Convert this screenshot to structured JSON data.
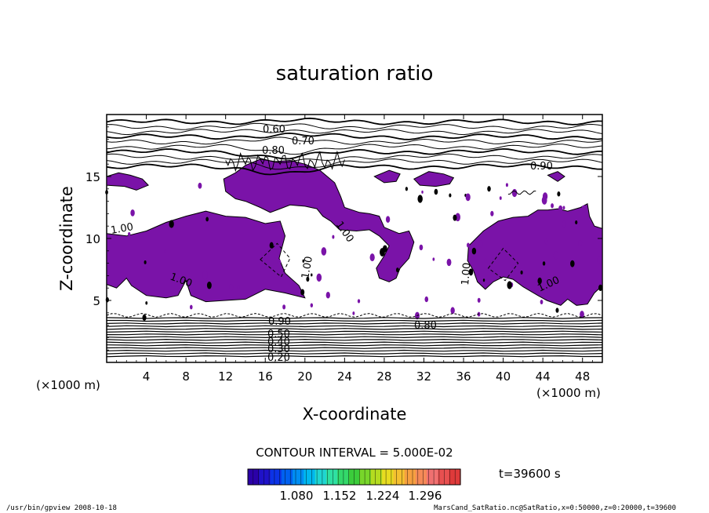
{
  "chart_data": {
    "type": "contour",
    "title": "saturation ratio",
    "xlabel": "X-coordinate",
    "ylabel": "Z-coordinate",
    "x_unit": "(×1000 m)",
    "y_unit": "(×1000 m)",
    "xlim": [
      0,
      50
    ],
    "ylim": [
      0,
      20
    ],
    "x_ticks": [
      4,
      8,
      12,
      16,
      20,
      24,
      28,
      32,
      36,
      40,
      44,
      48
    ],
    "y_ticks": [
      5,
      10,
      15
    ],
    "contour_interval_text": "CONTOUR INTERVAL = 5.000E-02",
    "shaded_region_color": "#7a13a8",
    "contour_labels": [
      "0.60",
      "0.70",
      "0.80",
      "0.90",
      "1.00",
      "1.00",
      "1.00",
      "1.00",
      "1.00",
      "1.00",
      "0.90",
      "0.80",
      "0.50",
      "0.40",
      "0.30",
      "0.20"
    ],
    "colorbar": {
      "tick_labels": [
        "1.080",
        "1.152",
        "1.224",
        "1.296"
      ],
      "colors": [
        "#2b00a8",
        "#1f12c8",
        "#0c33e6",
        "#0061f0",
        "#008ef2",
        "#00b8ee",
        "#1fd6d2",
        "#2fe0a2",
        "#33d86a",
        "#3bcc3b",
        "#78d62a",
        "#b4dc20",
        "#e8dc20",
        "#f4c030",
        "#f6a040",
        "#f58a58",
        "#f07070",
        "#e85050",
        "#de3a3a"
      ]
    },
    "time_label": "t=39600 s",
    "grid": false,
    "legend": "colorbar bottom"
  },
  "footer": {
    "left": "/usr/bin/gpview   2008-10-18",
    "right": "MarsCand_SatRatio.nc@SatRatio,x=0:50000,z=0:20000,t=39600"
  }
}
